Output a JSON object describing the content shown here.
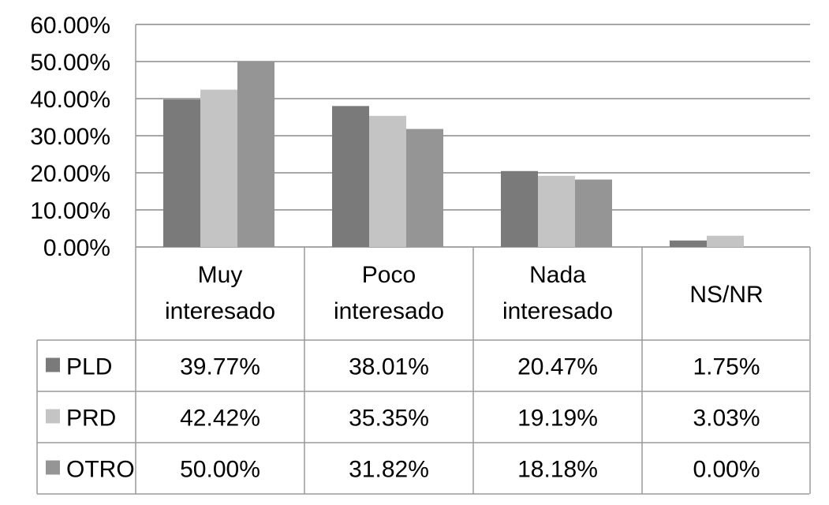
{
  "chart_data": {
    "type": "bar",
    "categories": [
      "Muy interesado",
      "Poco interesado",
      "Nada interesado",
      "NS/NR"
    ],
    "series": [
      {
        "name": "PLD",
        "values": [
          39.77,
          38.01,
          20.47,
          1.75
        ],
        "color": "#7a7a7a",
        "labels": [
          "39.77%",
          "38.01%",
          "20.47%",
          "1.75%"
        ]
      },
      {
        "name": "PRD",
        "values": [
          42.42,
          35.35,
          19.19,
          3.03
        ],
        "color": "#c4c4c4",
        "labels": [
          "42.42%",
          "35.35%",
          "19.19%",
          "3.03%"
        ]
      },
      {
        "name": "OTRO",
        "values": [
          50.0,
          31.82,
          18.18,
          0.0
        ],
        "color": "#959595",
        "labels": [
          "50.00%",
          "31.82%",
          "18.18%",
          "0.00%"
        ]
      }
    ],
    "ylim": [
      0,
      60
    ],
    "yticks": [
      "0.00%",
      "10.00%",
      "20.00%",
      "30.00%",
      "40.00%",
      "50.00%",
      "60.00%"
    ],
    "grid": true,
    "legend": "data-table"
  }
}
